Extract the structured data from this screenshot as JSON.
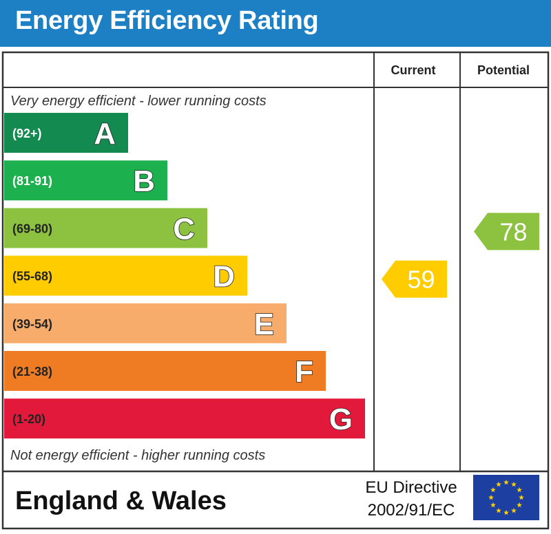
{
  "header": {
    "title": "Energy Efficiency Rating"
  },
  "columns": {
    "current": "Current",
    "potential": "Potential"
  },
  "captions": {
    "top": "Very energy efficient - lower running costs",
    "bottom": "Not energy efficient - higher running costs"
  },
  "footer": {
    "region": "England & Wales",
    "directive_line1": "EU Directive",
    "directive_line2": "2002/91/EC"
  },
  "colors": {
    "header": "#1e80c4",
    "eu_flag": "#1d3fa1",
    "eu_stars": "#ffd200"
  },
  "chart_data": {
    "type": "bar",
    "categories": [
      "A",
      "B",
      "C",
      "D",
      "E",
      "F",
      "G"
    ],
    "bands": [
      {
        "letter": "A",
        "range": "(92+)",
        "color": "#138a4f",
        "label_color": "#ffffff"
      },
      {
        "letter": "B",
        "range": "(81-91)",
        "color": "#1db04f",
        "label_color": "#ffffff"
      },
      {
        "letter": "C",
        "range": "(69-80)",
        "color": "#8cc23f",
        "label_color": "#222222"
      },
      {
        "letter": "D",
        "range": "(55-68)",
        "color": "#ffcc00",
        "label_color": "#222222"
      },
      {
        "letter": "E",
        "range": "(39-54)",
        "color": "#f7ac6b",
        "label_color": "#222222"
      },
      {
        "letter": "F",
        "range": "(21-38)",
        "color": "#ef7c22",
        "label_color": "#222222"
      },
      {
        "letter": "G",
        "range": "(1-20)",
        "color": "#e3193b",
        "label_color": "#222222"
      }
    ],
    "current": {
      "value": 59,
      "band": "D",
      "color": "#ffcc00"
    },
    "potential": {
      "value": 78,
      "band": "C",
      "color": "#8cc23f"
    }
  }
}
